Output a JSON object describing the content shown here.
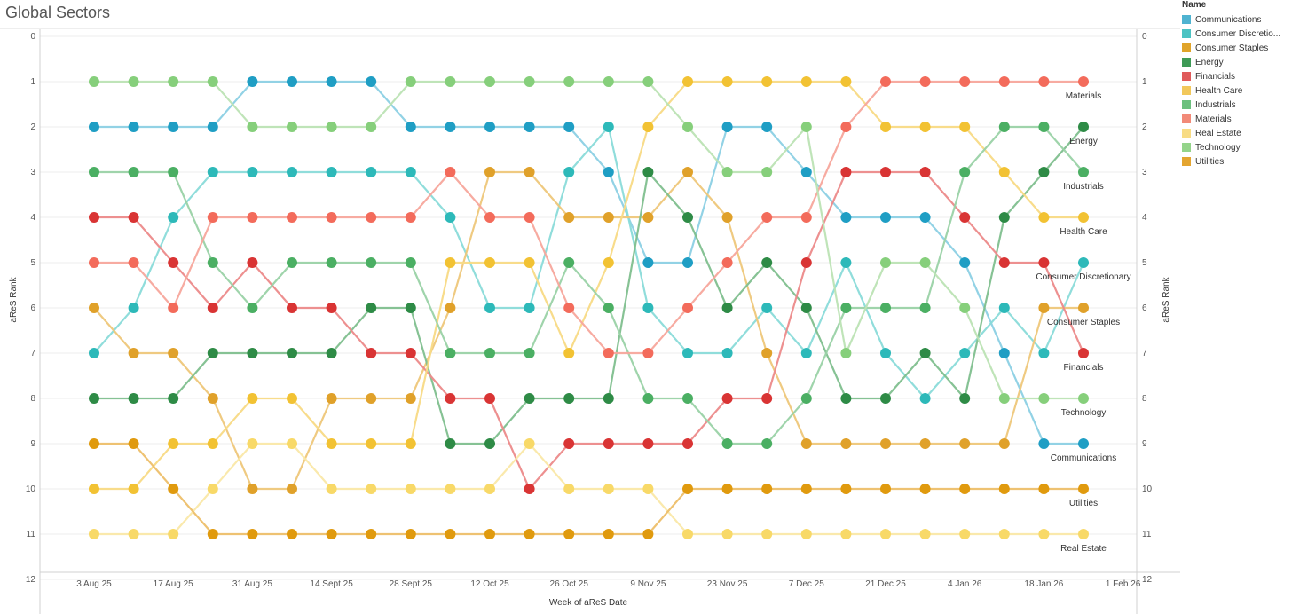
{
  "title": "Global Sectors",
  "legend": {
    "title": "Name",
    "items": [
      {
        "label": "Communications",
        "color": "#4FB3D1"
      },
      {
        "label": "Consumer Discretio...",
        "color": "#4CC3C3"
      },
      {
        "label": "Consumer Staples",
        "color": "#E0A42A"
      },
      {
        "label": "Energy",
        "color": "#3E9A56"
      },
      {
        "label": "Financials",
        "color": "#E05A5A"
      },
      {
        "label": "Health Care",
        "color": "#F2C85B"
      },
      {
        "label": "Industrials",
        "color": "#6CC07E"
      },
      {
        "label": "Materials",
        "color": "#F28A78"
      },
      {
        "label": "Real Estate",
        "color": "#F8DC84"
      },
      {
        "label": "Technology",
        "color": "#94D48A"
      },
      {
        "label": "Utilities",
        "color": "#E4A530"
      }
    ]
  },
  "chart_data": {
    "type": "line",
    "title": "Global Sectors",
    "xlabel": "Week of aReS Date",
    "ylabel": "aReS Rank",
    "ylim": [
      0,
      12
    ],
    "y_ticks": [
      "0",
      "1",
      "2",
      "3",
      "4",
      "5",
      "6",
      "7",
      "8",
      "9",
      "10",
      "11",
      "12"
    ],
    "x_tick_labels": [
      "3 Aug 25",
      "17 Aug 25",
      "31 Aug 25",
      "14 Sept 25",
      "28 Sept 25",
      "12 Oct 25",
      "26 Oct 25",
      "9 Nov 25",
      "23 Nov 25",
      "7 Dec 25",
      "21 Dec 25",
      "4 Jan 26",
      "18 Jan 26",
      "1 Feb 26"
    ],
    "x": [
      "3 Aug 25",
      "10 Aug 25",
      "17 Aug 25",
      "24 Aug 25",
      "31 Aug 25",
      "7 Sept 25",
      "14 Sept 25",
      "21 Sept 25",
      "28 Sept 25",
      "5 Oct 25",
      "12 Oct 25",
      "19 Oct 25",
      "26 Oct 25",
      "2 Nov 25",
      "9 Nov 25",
      "16 Nov 25",
      "23 Nov 25",
      "30 Nov 25",
      "7 Dec 25",
      "14 Dec 25",
      "21 Dec 25",
      "28 Dec 25",
      "4 Jan 26",
      "11 Jan 26",
      "18 Jan 26",
      "25 Jan 26"
    ],
    "series": [
      {
        "name": "Communications",
        "color": "#1F9EC4",
        "line": "#8CD0E4",
        "end_label": "Communications",
        "values": [
          2,
          2,
          2,
          2,
          1,
          1,
          1,
          1,
          2,
          2,
          2,
          2,
          2,
          3,
          5,
          5,
          2,
          2,
          3,
          4,
          4,
          4,
          5,
          7,
          9,
          9
        ]
      },
      {
        "name": "Consumer Discretionary",
        "color": "#2DB9B9",
        "line": "#8ADBD9",
        "end_label": "Consumer Discretionary",
        "values": [
          7,
          6,
          4,
          3,
          3,
          3,
          3,
          3,
          3,
          4,
          6,
          6,
          3,
          2,
          6,
          7,
          7,
          6,
          7,
          5,
          7,
          8,
          7,
          6,
          7,
          5
        ]
      },
      {
        "name": "Consumer Staples",
        "color": "#E0A12A",
        "line": "#EEC77A",
        "end_label": "Consumer Staples",
        "values": [
          6,
          7,
          7,
          8,
          10,
          10,
          8,
          8,
          8,
          6,
          3,
          3,
          4,
          4,
          4,
          3,
          4,
          7,
          9,
          9,
          9,
          9,
          9,
          9,
          6,
          6
        ]
      },
      {
        "name": "Energy",
        "color": "#2E8B46",
        "line": "#7FBF8E",
        "end_label": "Energy",
        "values": [
          8,
          8,
          8,
          7,
          7,
          7,
          7,
          6,
          6,
          9,
          9,
          8,
          8,
          8,
          3,
          4,
          6,
          5,
          6,
          8,
          8,
          7,
          8,
          4,
          3,
          2
        ]
      },
      {
        "name": "Financials",
        "color": "#D93434",
        "line": "#EC8A8A",
        "end_label": "Financials",
        "values": [
          4,
          4,
          5,
          6,
          5,
          6,
          6,
          7,
          7,
          8,
          8,
          10,
          9,
          9,
          9,
          9,
          8,
          8,
          5,
          3,
          3,
          3,
          4,
          5,
          5,
          7
        ]
      },
      {
        "name": "Health Care",
        "color": "#F2C233",
        "line": "#F8DA85",
        "end_label": "Health Care",
        "values": [
          10,
          10,
          9,
          9,
          8,
          8,
          9,
          9,
          9,
          5,
          5,
          5,
          7,
          5,
          2,
          1,
          1,
          1,
          1,
          1,
          2,
          2,
          2,
          3,
          4,
          4
        ]
      },
      {
        "name": "Industrials",
        "color": "#4BAF63",
        "line": "#9AD2A6",
        "end_label": "Industrials",
        "values": [
          3,
          3,
          3,
          5,
          6,
          5,
          5,
          5,
          5,
          7,
          7,
          7,
          5,
          6,
          8,
          8,
          9,
          9,
          8,
          6,
          6,
          6,
          3,
          2,
          2,
          3
        ]
      },
      {
        "name": "Materials",
        "color": "#F36B5B",
        "line": "#F7A79C",
        "end_label": "Materials",
        "values": [
          5,
          5,
          6,
          4,
          4,
          4,
          4,
          4,
          4,
          3,
          4,
          4,
          6,
          7,
          7,
          6,
          5,
          4,
          4,
          2,
          1,
          1,
          1,
          1,
          1,
          1
        ]
      },
      {
        "name": "Real Estate",
        "color": "#F8D968",
        "line": "#FAE8A8",
        "end_label": "Real Estate",
        "values": [
          11,
          11,
          11,
          10,
          9,
          9,
          10,
          10,
          10,
          10,
          10,
          9,
          10,
          10,
          10,
          11,
          11,
          11,
          11,
          11,
          11,
          11,
          11,
          11,
          11,
          11
        ]
      },
      {
        "name": "Technology",
        "color": "#86CF7B",
        "line": "#BCE3B4",
        "end_label": "Technology",
        "values": [
          1,
          1,
          1,
          1,
          2,
          2,
          2,
          2,
          1,
          1,
          1,
          1,
          1,
          1,
          1,
          2,
          3,
          3,
          2,
          7,
          5,
          5,
          6,
          8,
          8,
          8
        ]
      },
      {
        "name": "Utilities",
        "color": "#E09A0E",
        "line": "#EDBF6A",
        "end_label": "Utilities",
        "values": [
          9,
          9,
          10,
          11,
          11,
          11,
          11,
          11,
          11,
          11,
          11,
          11,
          11,
          11,
          11,
          10,
          10,
          10,
          10,
          10,
          10,
          10,
          10,
          10,
          10,
          10
        ]
      }
    ],
    "end_label_order": [
      "Materials",
      "Energy",
      "Industrials",
      "Health Care",
      "Consumer Discretionary",
      "Consumer Staples",
      "Financials",
      "Technology",
      "Communications",
      "Utilities",
      "Real Estate"
    ]
  }
}
